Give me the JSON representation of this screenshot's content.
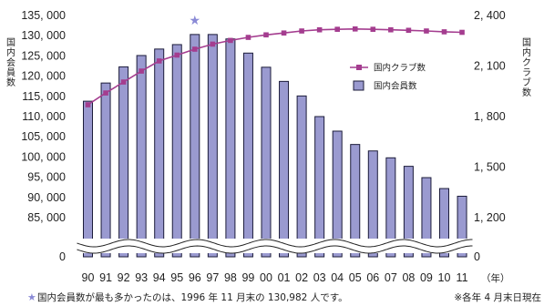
{
  "chart_data": {
    "type": "bar+line",
    "categories": [
      "90",
      "91",
      "92",
      "93",
      "94",
      "95",
      "96",
      "97",
      "98",
      "99",
      "00",
      "01",
      "02",
      "03",
      "04",
      "05",
      "06",
      "07",
      "08",
      "09",
      "10",
      "11"
    ],
    "x_unit": "（年）",
    "series": [
      {
        "name": "国内会員数",
        "type": "bar",
        "axis": "left",
        "color": "#9a9ad0",
        "values": [
          113800,
          118300,
          122300,
          125100,
          126700,
          127800,
          130300,
          130300,
          129200,
          125700,
          122200,
          118700,
          115100,
          110000,
          106400,
          103100,
          101500,
          99800,
          97700,
          94900,
          92200,
          90300
        ]
      },
      {
        "name": "国内クラブ数",
        "type": "line",
        "axis": "right",
        "color": "#a43d8f",
        "values": [
          1870,
          1940,
          2005,
          2070,
          2130,
          2165,
          2200,
          2230,
          2252,
          2270,
          2285,
          2296,
          2308,
          2315,
          2318,
          2320,
          2318,
          2315,
          2312,
          2308,
          2303,
          2300
        ]
      }
    ],
    "left_axis": {
      "label": "国内会員数",
      "ticks": [
        "135, 000",
        "130, 000",
        "125, 000",
        "120, 000",
        "115, 000",
        "110, 000",
        "105, 000",
        "100, 000",
        "95, 000",
        "90, 000",
        "85, 000"
      ],
      "zero_label": "0",
      "ylim": [
        85000,
        135000
      ],
      "broken": true
    },
    "right_axis": {
      "label": "国内クラブ数",
      "ticks": [
        "2, 400",
        "2, 100",
        "1, 800",
        "1, 500",
        "1, 200"
      ],
      "zero_label": "0",
      "ylim": [
        1200,
        2400
      ],
      "broken": true
    },
    "legend": {
      "position": "right",
      "entries": [
        "国内クラブ数",
        "国内会員数"
      ]
    },
    "highlight": {
      "category": "96",
      "marker": "★",
      "color": "#8a8ad6"
    },
    "footnote_left": "国内会員数が最も多かったのは、1996 年 11 月末の 130,982 人です。",
    "footnote_left_star": "★",
    "footnote_right": "※各年 4 月末日現在",
    "grid": false
  }
}
